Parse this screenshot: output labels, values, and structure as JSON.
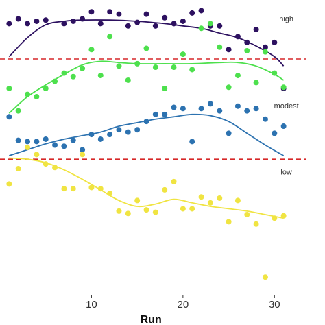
{
  "chart_data": {
    "type": "scatter",
    "xlabel": "Run",
    "xlim": [
      0,
      33.5
    ],
    "ylim": [
      -1.2,
      1.3
    ],
    "x_ticks": [
      10,
      20,
      30
    ],
    "x_tick_labels": [
      "10",
      "20",
      "30"
    ],
    "grid": false,
    "legend": "none",
    "reference_lines": [
      {
        "y": 0.8,
        "color": "#d62728",
        "style": "dashed"
      },
      {
        "y": -0.05,
        "color": "#d62728",
        "style": "dashed"
      }
    ],
    "band_labels": [
      {
        "text": "high",
        "x": 31.3,
        "y": 1.12
      },
      {
        "text": "modest",
        "x": 31.3,
        "y": 0.38
      },
      {
        "text": "low",
        "x": 31.3,
        "y": -0.18
      }
    ],
    "series": [
      {
        "color": "#2d1160",
        "points": [
          [
            1,
            1.1
          ],
          [
            2,
            1.14
          ],
          [
            3,
            1.1
          ],
          [
            4,
            1.12
          ],
          [
            5,
            1.13
          ],
          [
            7,
            1.1
          ],
          [
            8,
            1.12
          ],
          [
            9,
            1.14
          ],
          [
            10,
            1.2
          ],
          [
            11,
            1.1
          ],
          [
            12,
            1.2
          ],
          [
            13,
            1.18
          ],
          [
            14,
            1.08
          ],
          [
            15,
            1.11
          ],
          [
            16,
            1.18
          ],
          [
            17,
            1.08
          ],
          [
            18,
            1.15
          ],
          [
            19,
            1.1
          ],
          [
            20,
            1.12
          ],
          [
            21,
            1.19
          ],
          [
            22,
            1.21
          ],
          [
            23,
            1.08
          ],
          [
            24,
            1.08
          ],
          [
            25,
            0.88
          ],
          [
            26,
            0.99
          ],
          [
            27,
            0.94
          ],
          [
            28,
            1.05
          ],
          [
            29,
            0.9
          ],
          [
            30,
            0.94
          ],
          [
            31,
            0.55
          ]
        ],
        "smooth": [
          [
            1,
            0.82
          ],
          [
            3,
            0.98
          ],
          [
            5,
            1.09
          ],
          [
            7,
            1.12
          ],
          [
            9,
            1.13
          ],
          [
            12,
            1.13
          ],
          [
            15,
            1.12
          ],
          [
            18,
            1.1
          ],
          [
            20,
            1.08
          ],
          [
            22,
            1.06
          ],
          [
            24,
            1.02
          ],
          [
            26,
            0.98
          ],
          [
            28,
            0.91
          ],
          [
            30,
            0.82
          ],
          [
            31,
            0.74
          ]
        ]
      },
      {
        "color": "#4de04d",
        "points": [
          [
            1,
            0.55
          ],
          [
            2,
            0.36
          ],
          [
            3,
            0.5
          ],
          [
            4,
            0.48
          ],
          [
            5,
            0.55
          ],
          [
            6,
            0.61
          ],
          [
            7,
            0.68
          ],
          [
            8,
            0.65
          ],
          [
            9,
            0.72
          ],
          [
            10,
            0.88
          ],
          [
            11,
            0.66
          ],
          [
            12,
            0.99
          ],
          [
            13,
            0.74
          ],
          [
            14,
            0.62
          ],
          [
            15,
            0.76
          ],
          [
            16,
            0.89
          ],
          [
            17,
            0.73
          ],
          [
            18,
            0.55
          ],
          [
            19,
            0.73
          ],
          [
            20,
            0.84
          ],
          [
            21,
            0.71
          ],
          [
            22,
            1.06
          ],
          [
            23,
            1.1
          ],
          [
            24,
            0.9
          ],
          [
            25,
            0.56
          ],
          [
            26,
            0.66
          ],
          [
            27,
            0.87
          ],
          [
            28,
            0.6
          ],
          [
            29,
            0.86
          ],
          [
            30,
            0.68
          ],
          [
            31,
            0.56
          ]
        ],
        "smooth": [
          [
            1,
            0.34
          ],
          [
            3,
            0.48
          ],
          [
            5,
            0.58
          ],
          [
            7,
            0.67
          ],
          [
            9,
            0.75
          ],
          [
            11,
            0.78
          ],
          [
            13,
            0.77
          ],
          [
            15,
            0.76
          ],
          [
            18,
            0.76
          ],
          [
            21,
            0.76
          ],
          [
            24,
            0.77
          ],
          [
            26,
            0.77
          ],
          [
            28,
            0.74
          ],
          [
            30,
            0.67
          ],
          [
            31,
            0.62
          ]
        ]
      },
      {
        "color": "#2c72b0",
        "points": [
          [
            1,
            0.31
          ],
          [
            2,
            0.11
          ],
          [
            3,
            0.1
          ],
          [
            4,
            0.1
          ],
          [
            5,
            0.12
          ],
          [
            6,
            0.07
          ],
          [
            7,
            0.06
          ],
          [
            8,
            0.11
          ],
          [
            9,
            0.03
          ],
          [
            10,
            0.16
          ],
          [
            11,
            0.12
          ],
          [
            12,
            0.16
          ],
          [
            13,
            0.2
          ],
          [
            14,
            0.18
          ],
          [
            15,
            0.2
          ],
          [
            16,
            0.27
          ],
          [
            17,
            0.33
          ],
          [
            18,
            0.33
          ],
          [
            19,
            0.39
          ],
          [
            20,
            0.38
          ],
          [
            21,
            0.1
          ],
          [
            22,
            0.38
          ],
          [
            23,
            0.42
          ],
          [
            24,
            0.36
          ],
          [
            25,
            0.17
          ],
          [
            26,
            0.4
          ],
          [
            27,
            0.36
          ],
          [
            28,
            0.38
          ],
          [
            29,
            0.29
          ],
          [
            30,
            0.17
          ],
          [
            31,
            0.23
          ]
        ],
        "smooth": [
          [
            1,
            -0.02
          ],
          [
            3,
            0.03
          ],
          [
            5,
            0.08
          ],
          [
            7,
            0.12
          ],
          [
            9,
            0.15
          ],
          [
            11,
            0.18
          ],
          [
            13,
            0.23
          ],
          [
            15,
            0.26
          ],
          [
            17,
            0.29
          ],
          [
            19,
            0.31
          ],
          [
            21,
            0.33
          ],
          [
            23,
            0.32
          ],
          [
            25,
            0.27
          ],
          [
            27,
            0.17
          ],
          [
            29,
            0.07
          ],
          [
            31,
            -0.02
          ]
        ]
      },
      {
        "color": "#f0e442",
        "points": [
          [
            1,
            -0.26
          ],
          [
            2,
            -0.13
          ],
          [
            3,
            0.05
          ],
          [
            4,
            -0.01
          ],
          [
            5,
            -0.09
          ],
          [
            6,
            -0.12
          ],
          [
            7,
            -0.3
          ],
          [
            8,
            -0.3
          ],
          [
            9,
            -0.01
          ],
          [
            10,
            -0.29
          ],
          [
            11,
            -0.3
          ],
          [
            12,
            -0.34
          ],
          [
            13,
            -0.49
          ],
          [
            14,
            -0.51
          ],
          [
            15,
            -0.4
          ],
          [
            16,
            -0.48
          ],
          [
            17,
            -0.5
          ],
          [
            18,
            -0.31
          ],
          [
            19,
            -0.24
          ],
          [
            20,
            -0.47
          ],
          [
            21,
            -0.47
          ],
          [
            22,
            -0.37
          ],
          [
            23,
            -0.42
          ],
          [
            24,
            -0.38
          ],
          [
            25,
            -0.58
          ],
          [
            26,
            -0.4
          ],
          [
            27,
            -0.52
          ],
          [
            28,
            -0.6
          ],
          [
            29,
            -1.05
          ],
          [
            30,
            -0.55
          ],
          [
            31,
            -0.53
          ]
        ],
        "smooth": [
          [
            1,
            -0.04
          ],
          [
            3,
            -0.05
          ],
          [
            5,
            -0.08
          ],
          [
            7,
            -0.14
          ],
          [
            9,
            -0.22
          ],
          [
            11,
            -0.31
          ],
          [
            13,
            -0.4
          ],
          [
            15,
            -0.45
          ],
          [
            17,
            -0.43
          ],
          [
            19,
            -0.39
          ],
          [
            21,
            -0.42
          ],
          [
            23,
            -0.45
          ],
          [
            25,
            -0.47
          ],
          [
            27,
            -0.49
          ],
          [
            29,
            -0.52
          ],
          [
            31,
            -0.55
          ]
        ]
      }
    ]
  }
}
